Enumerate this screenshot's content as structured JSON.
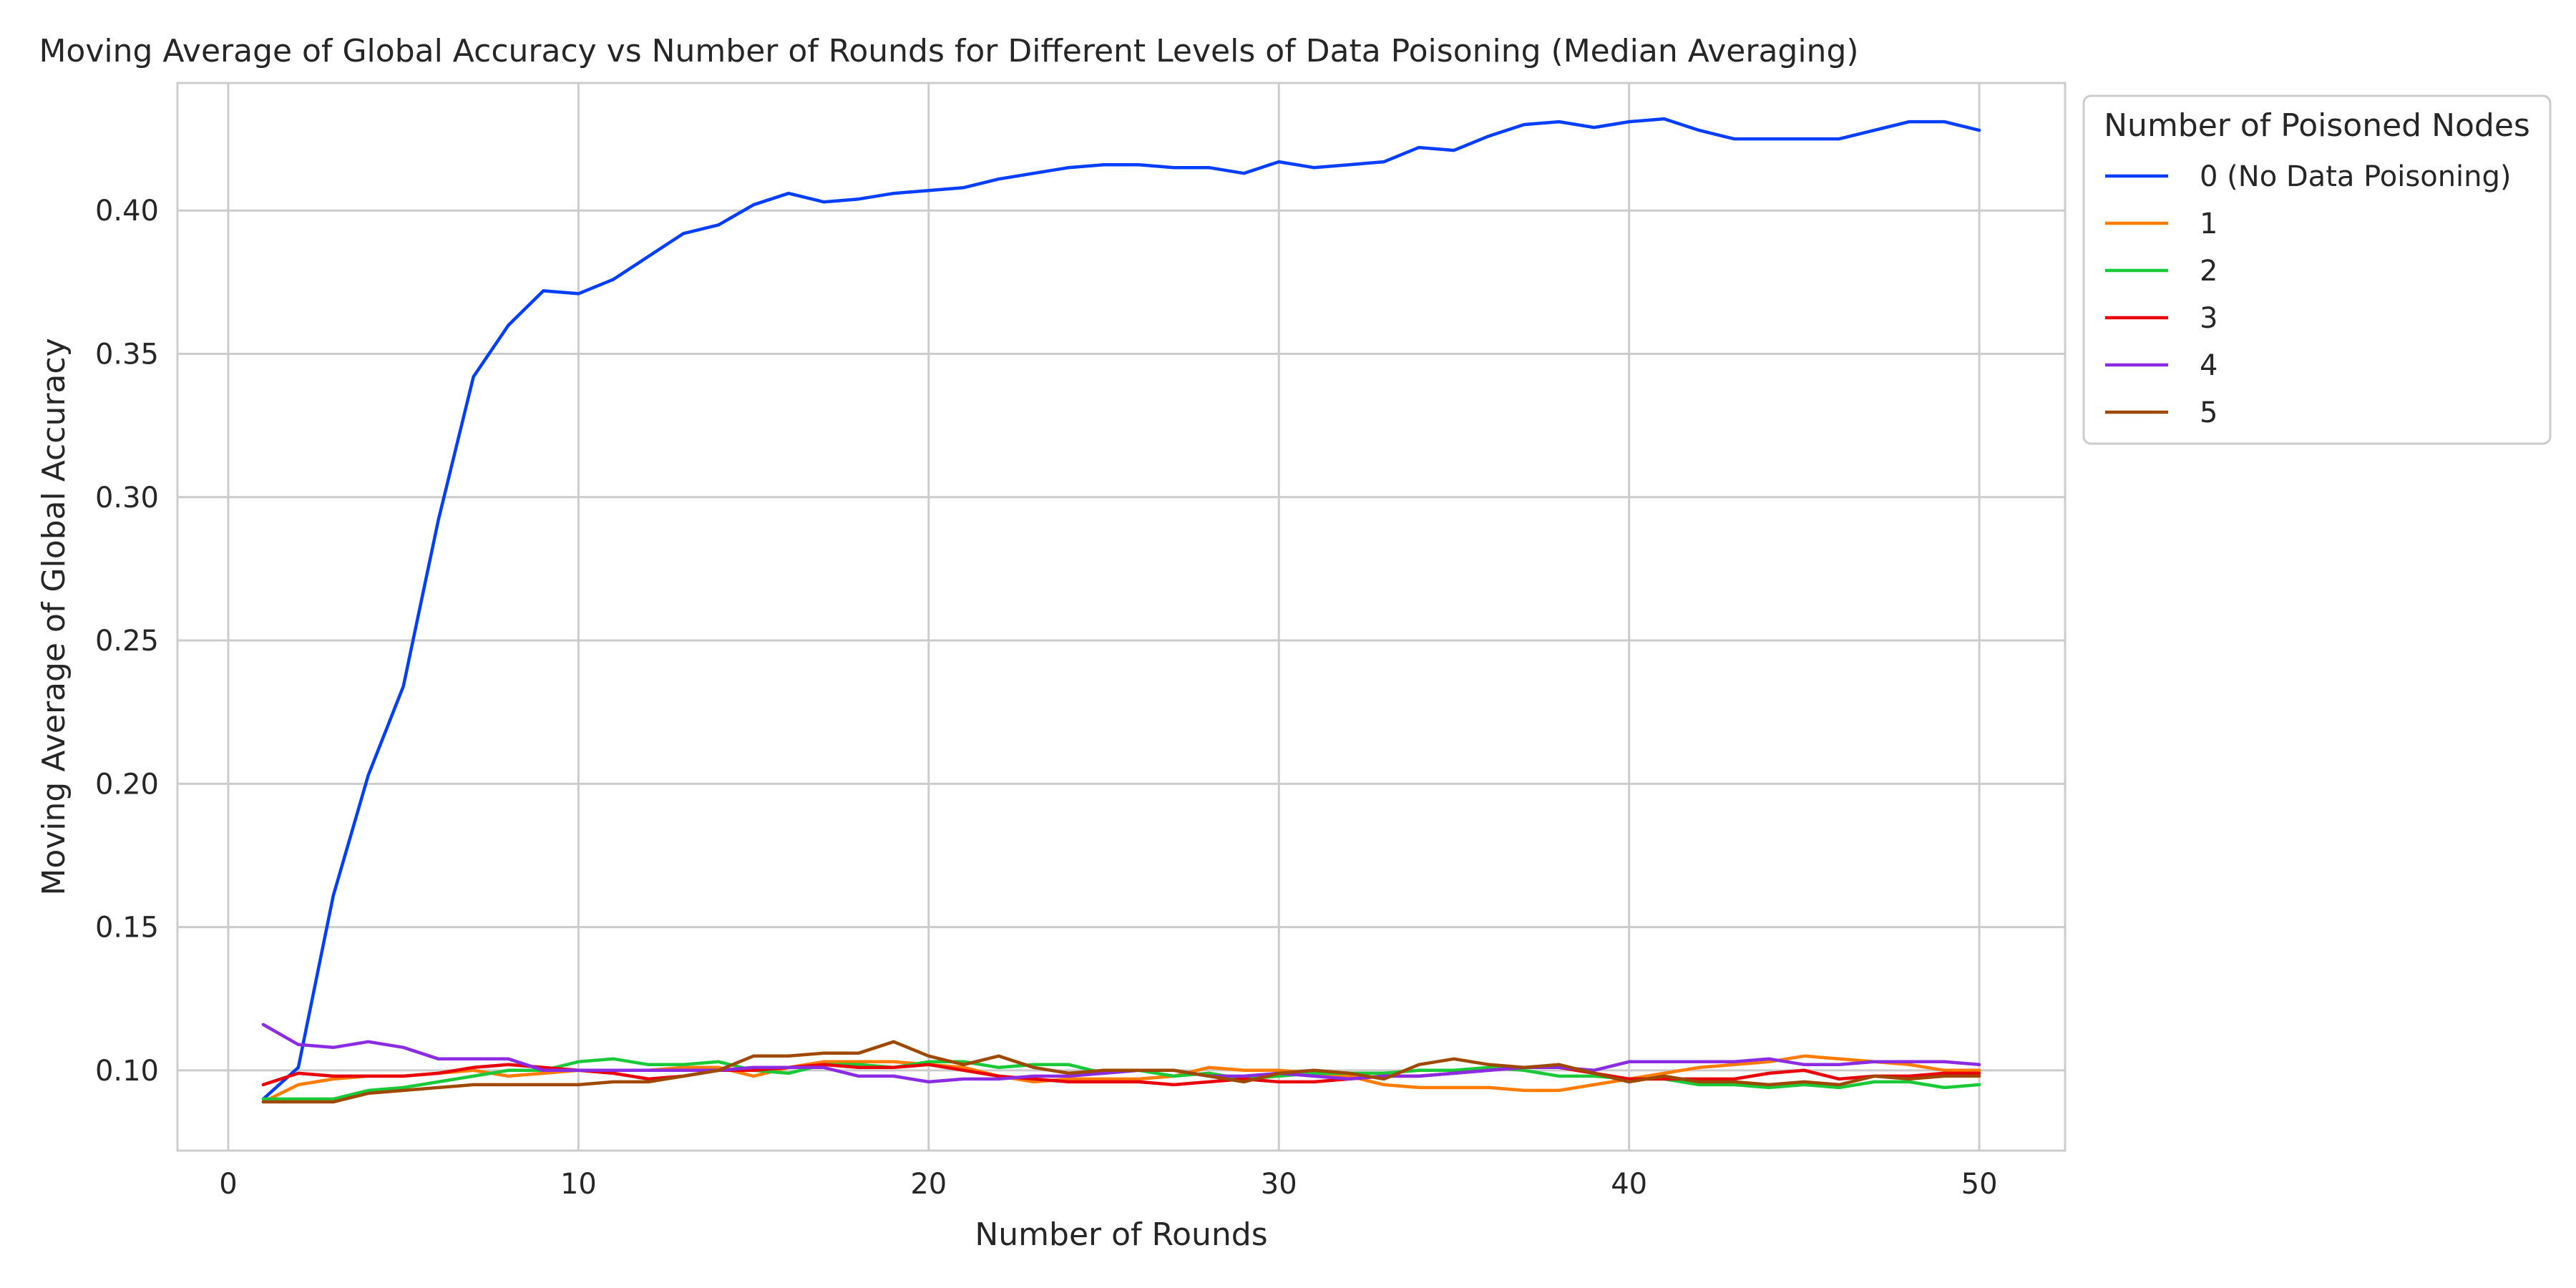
{
  "chart_data": {
    "type": "line",
    "title": "Moving Average of Global Accuracy vs Number of Rounds for Different Levels of Data Poisoning (Median Averaging)",
    "xlabel": "Number of Rounds",
    "ylabel": "Moving Average of Global Accuracy",
    "xlim": [
      -1.45,
      52.45
    ],
    "ylim": [
      0.072,
      0.4445
    ],
    "xticks": [
      0,
      10,
      20,
      30,
      40,
      50
    ],
    "yticks": [
      0.1,
      0.15,
      0.2,
      0.25,
      0.3,
      0.35,
      0.4
    ],
    "ytick_labels": [
      "0.10",
      "0.15",
      "0.20",
      "0.25",
      "0.30",
      "0.35",
      "0.40"
    ],
    "xtick_labels": [
      "0",
      "10",
      "20",
      "30",
      "40",
      "50"
    ],
    "grid": true,
    "legend": {
      "title": "Number of Poisoned Nodes",
      "placement": "outside-top-right"
    },
    "x": [
      1,
      2,
      3,
      4,
      5,
      6,
      7,
      8,
      9,
      10,
      11,
      12,
      13,
      14,
      15,
      16,
      17,
      18,
      19,
      20,
      21,
      22,
      23,
      24,
      25,
      26,
      27,
      28,
      29,
      30,
      31,
      32,
      33,
      34,
      35,
      36,
      37,
      38,
      39,
      40,
      41,
      42,
      43,
      44,
      45,
      46,
      47,
      48,
      49,
      50
    ],
    "series": [
      {
        "name": "0 (No Data Poisoning)",
        "color": "#023eff",
        "values": [
          0.09,
          0.101,
          0.161,
          0.203,
          0.234,
          0.292,
          0.342,
          0.36,
          0.372,
          0.371,
          0.376,
          0.384,
          0.392,
          0.395,
          0.402,
          0.406,
          0.403,
          0.404,
          0.406,
          0.407,
          0.408,
          0.411,
          0.413,
          0.415,
          0.416,
          0.416,
          0.415,
          0.415,
          0.413,
          0.417,
          0.415,
          0.416,
          0.417,
          0.422,
          0.421,
          0.426,
          0.43,
          0.431,
          0.429,
          0.431,
          0.432,
          0.428,
          0.425,
          0.425,
          0.425,
          0.425,
          0.428,
          0.431,
          0.431,
          0.428
        ]
      },
      {
        "name": "1",
        "color": "#ff7c00",
        "values": [
          0.089,
          0.095,
          0.097,
          0.098,
          0.098,
          0.099,
          0.1,
          0.098,
          0.099,
          0.1,
          0.1,
          0.1,
          0.101,
          0.101,
          0.098,
          0.101,
          0.103,
          0.103,
          0.103,
          0.102,
          0.101,
          0.098,
          0.096,
          0.097,
          0.097,
          0.097,
          0.098,
          0.101,
          0.1,
          0.1,
          0.099,
          0.098,
          0.095,
          0.094,
          0.094,
          0.094,
          0.093,
          0.093,
          0.095,
          0.097,
          0.099,
          0.101,
          0.102,
          0.103,
          0.105,
          0.104,
          0.103,
          0.102,
          0.1,
          0.1
        ]
      },
      {
        "name": "2",
        "color": "#1ac938",
        "values": [
          0.09,
          0.09,
          0.09,
          0.093,
          0.094,
          0.096,
          0.098,
          0.1,
          0.1,
          0.103,
          0.104,
          0.102,
          0.102,
          0.103,
          0.1,
          0.099,
          0.102,
          0.102,
          0.101,
          0.103,
          0.103,
          0.101,
          0.102,
          0.102,
          0.099,
          0.1,
          0.098,
          0.099,
          0.097,
          0.098,
          0.099,
          0.099,
          0.099,
          0.1,
          0.1,
          0.101,
          0.1,
          0.098,
          0.098,
          0.097,
          0.097,
          0.095,
          0.095,
          0.094,
          0.095,
          0.094,
          0.096,
          0.096,
          0.094,
          0.095
        ]
      },
      {
        "name": "3",
        "color": "#e8000b",
        "values": [
          0.095,
          0.099,
          0.098,
          0.098,
          0.098,
          0.099,
          0.101,
          0.102,
          0.101,
          0.1,
          0.099,
          0.097,
          0.098,
          0.1,
          0.1,
          0.101,
          0.102,
          0.101,
          0.101,
          0.102,
          0.1,
          0.098,
          0.097,
          0.096,
          0.096,
          0.096,
          0.095,
          0.096,
          0.097,
          0.096,
          0.096,
          0.097,
          0.098,
          0.098,
          0.099,
          0.1,
          0.101,
          0.101,
          0.099,
          0.097,
          0.097,
          0.097,
          0.097,
          0.099,
          0.1,
          0.097,
          0.098,
          0.098,
          0.099,
          0.099
        ]
      },
      {
        "name": "4",
        "color": "#8b2be2",
        "values": [
          0.116,
          0.109,
          0.108,
          0.11,
          0.108,
          0.104,
          0.104,
          0.104,
          0.1,
          0.1,
          0.1,
          0.1,
          0.1,
          0.1,
          0.101,
          0.101,
          0.101,
          0.098,
          0.098,
          0.096,
          0.097,
          0.097,
          0.098,
          0.098,
          0.099,
          0.1,
          0.1,
          0.098,
          0.098,
          0.099,
          0.098,
          0.097,
          0.098,
          0.098,
          0.099,
          0.1,
          0.101,
          0.101,
          0.1,
          0.103,
          0.103,
          0.103,
          0.103,
          0.104,
          0.102,
          0.102,
          0.103,
          0.103,
          0.103,
          0.102
        ]
      },
      {
        "name": "5",
        "color": "#9f4800",
        "values": [
          0.089,
          0.089,
          0.089,
          0.092,
          0.093,
          0.094,
          0.095,
          0.095,
          0.095,
          0.095,
          0.096,
          0.096,
          0.098,
          0.1,
          0.105,
          0.105,
          0.106,
          0.106,
          0.11,
          0.105,
          0.102,
          0.105,
          0.101,
          0.099,
          0.1,
          0.1,
          0.1,
          0.098,
          0.096,
          0.099,
          0.1,
          0.099,
          0.097,
          0.102,
          0.104,
          0.102,
          0.101,
          0.102,
          0.099,
          0.096,
          0.098,
          0.096,
          0.096,
          0.095,
          0.096,
          0.095,
          0.098,
          0.097,
          0.098,
          0.098
        ]
      }
    ]
  }
}
